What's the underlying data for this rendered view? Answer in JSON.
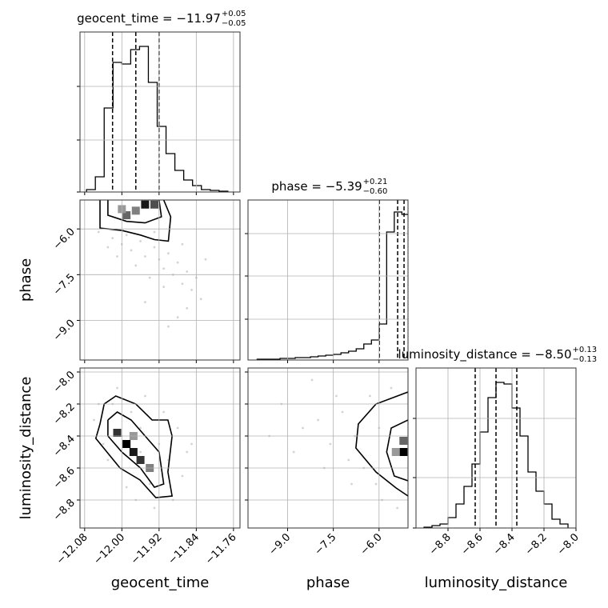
{
  "chart_data": [
    {
      "type": "histogram",
      "title": "geocent_time = −11.97",
      "title_upper": "+0.05",
      "title_lower": "−0.05",
      "color": "#000000",
      "bins": [
        -12.076,
        -12.057,
        -12.038,
        -12.019,
        -12.0,
        -11.981,
        -11.962,
        -11.943,
        -11.924,
        -11.905,
        -11.886,
        -11.867,
        -11.848,
        -11.829,
        -11.81,
        -11.791,
        -11.772
      ],
      "values": [
        3,
        19,
        105,
        162,
        160,
        178,
        182,
        137,
        82,
        48,
        27,
        15,
        8,
        3,
        2,
        1
      ],
      "quantiles": [
        -12.02,
        -11.97,
        -11.92
      ],
      "xlim": [
        -12.09,
        -11.746
      ],
      "xticks": [
        -12.08,
        -12.0,
        -11.92,
        -11.84,
        -11.76
      ],
      "ylim": [
        0,
        200
      ],
      "yticks": [
        0,
        65,
        132
      ],
      "grid": true
    },
    {
      "type": "scatter",
      "ylabel": "phase",
      "color": "#808080",
      "x": [
        -12.05,
        -12.02,
        -12.0,
        -11.98,
        -11.96,
        -11.95,
        -11.93,
        -11.92,
        -11.91,
        -11.9,
        -11.89,
        -11.88,
        -11.87,
        -11.86,
        -11.85,
        -11.84,
        -11.83,
        -11.86,
        -11.88,
        -11.94,
        -11.97,
        -12.01,
        -11.99,
        -11.93,
        -11.87,
        -11.82,
        -11.9,
        -11.95,
        -12.03,
        -11.91
      ],
      "y": [
        -6.1,
        -6.3,
        -6.5,
        -6.7,
        -6.4,
        -6.9,
        -6.6,
        -7.0,
        -7.3,
        -6.8,
        -7.5,
        -7.1,
        -7.8,
        -7.4,
        -8.0,
        -7.6,
        -8.3,
        -8.6,
        -8.9,
        -7.6,
        -7.2,
        -6.9,
        -6.2,
        -6.1,
        -6.5,
        -7.0,
        -9.2,
        -8.4,
        -6.6,
        -7.9
      ],
      "cells": {
        "x": [
          -11.99,
          -11.95,
          -11.93,
          -12.0,
          -11.97
        ],
        "y": [
          -5.55,
          -5.2,
          -5.2,
          -5.35,
          -5.4
        ],
        "density": [
          0.6,
          0.9,
          0.7,
          0.4,
          0.5
        ]
      },
      "contours": [
        {
          "x": [
            -12.047,
            -12.047,
            -12.0,
            -11.96,
            -11.93,
            -11.9,
            -11.895,
            -11.91
          ],
          "y": [
            -5.05,
            -5.97,
            -6.05,
            -6.2,
            -6.35,
            -6.4,
            -5.6,
            -5.05
          ]
        },
        {
          "x": [
            -12.03,
            -12.03,
            -11.99,
            -11.95,
            -11.915,
            -11.92
          ],
          "y": [
            -5.05,
            -5.55,
            -5.75,
            -5.8,
            -5.6,
            -5.05
          ]
        }
      ],
      "xlim": [
        -12.09,
        -11.746
      ],
      "xticks": [
        -12.08,
        -12.0,
        -11.92,
        -11.84,
        -11.76
      ],
      "ylim": [
        -10.3,
        -5.05
      ],
      "yticks": [
        {
          "value": -6.0,
          "label": "−6.0"
        },
        {
          "value": -7.5,
          "label": "−7.5"
        },
        {
          "value": -9.0,
          "label": "−9.0"
        }
      ],
      "grid": true
    },
    {
      "type": "histogram",
      "title": "phase = −5.39",
      "title_upper": "+0.21",
      "title_lower": "−0.60",
      "color": "#000000",
      "bins": [
        -10.0,
        -9.75,
        -9.5,
        -9.25,
        -9.0,
        -8.75,
        -8.5,
        -8.25,
        -8.0,
        -7.75,
        -7.5,
        -7.25,
        -7.0,
        -6.75,
        -6.5,
        -6.25,
        -6.0,
        -5.75,
        -5.5,
        -5.25,
        -5.0
      ],
      "values": [
        1,
        1,
        1,
        2,
        2,
        3,
        3,
        4,
        5,
        6,
        7,
        9,
        11,
        14,
        20,
        25,
        45,
        160,
        185,
        182
      ],
      "quantiles": [
        -5.99,
        -5.39,
        -5.18
      ],
      "xlim": [
        -10.3,
        -5.05
      ],
      "xticks": [
        -9.0,
        -7.5,
        -6.0
      ],
      "ylim": [
        0,
        200
      ],
      "yticks": [
        51,
        105,
        158
      ],
      "grid": true
    },
    {
      "type": "scatter",
      "xlabel": "geocent_time",
      "ylabel": "luminosity_distance",
      "color": "#808080",
      "x": [
        -12.06,
        -12.04,
        -12.02,
        -12.0,
        -11.98,
        -11.96,
        -11.94,
        -11.92,
        -11.9,
        -11.88,
        -11.87,
        -11.86,
        -11.95,
        -11.99,
        -12.03,
        -11.97,
        -11.91,
        -11.89,
        -12.05,
        -11.93,
        -12.01,
        -11.85,
        -11.96,
        -12.0
      ],
      "y": [
        -8.3,
        -8.45,
        -8.2,
        -8.6,
        -8.25,
        -8.35,
        -8.7,
        -8.45,
        -8.55,
        -8.35,
        -8.65,
        -8.5,
        -8.15,
        -8.72,
        -8.55,
        -8.8,
        -8.25,
        -8.8,
        -8.2,
        -8.85,
        -8.1,
        -8.45,
        -8.5,
        -8.4
      ],
      "cells": {
        "x": [
          -12.01,
          -11.99,
          -11.975,
          -11.96,
          -11.94,
          -11.975
        ],
        "y": [
          -8.38,
          -8.45,
          -8.5,
          -8.55,
          -8.6,
          -8.4
        ],
        "density": [
          0.8,
          1,
          0.9,
          0.8,
          0.5,
          0.4
        ]
      },
      "contours": [
        {
          "x": [
            -12.047,
            -12.038,
            -12.013,
            -11.97,
            -11.935,
            -11.901,
            -11.892,
            -11.901,
            -11.892,
            -11.927,
            -11.961,
            -12.004,
            -12.056,
            -12.047
          ],
          "y": [
            -8.325,
            -8.2,
            -8.15,
            -8.2,
            -8.3,
            -8.3,
            -8.4,
            -8.625,
            -8.775,
            -8.785,
            -8.675,
            -8.6,
            -8.415,
            -8.325
          ]
        },
        {
          "x": [
            -12.03,
            -12.01,
            -11.98,
            -11.95,
            -11.92,
            -11.91,
            -11.93,
            -11.96,
            -12.0,
            -12.03,
            -12.03
          ],
          "y": [
            -8.3,
            -8.25,
            -8.3,
            -8.4,
            -8.5,
            -8.7,
            -8.72,
            -8.6,
            -8.5,
            -8.4,
            -8.3
          ]
        }
      ],
      "xlim": [
        -12.09,
        -11.746
      ],
      "xticks": [
        {
          "value": -12.08,
          "label": "−12.08"
        },
        {
          "value": -12.0,
          "label": "−12.00"
        },
        {
          "value": -11.92,
          "label": "−11.92"
        },
        {
          "value": -11.84,
          "label": "−11.84"
        },
        {
          "value": -11.76,
          "label": "−11.76"
        }
      ],
      "ylim": [
        -8.975,
        -7.975
      ],
      "yticks": [
        {
          "value": -8.0,
          "label": "−8.0"
        },
        {
          "value": -8.2,
          "label": "−8.2"
        },
        {
          "value": -8.4,
          "label": "−8.4"
        },
        {
          "value": -8.6,
          "label": "−8.6"
        },
        {
          "value": -8.8,
          "label": "−8.8"
        }
      ],
      "grid": true
    },
    {
      "type": "scatter",
      "xlabel": "phase",
      "color": "#808080",
      "x": [
        -9.2,
        -8.5,
        -8.0,
        -7.6,
        -7.2,
        -7.0,
        -6.8,
        -6.5,
        -6.3,
        -6.1,
        -5.9,
        -5.6,
        -7.8,
        -8.8,
        -6.9,
        -7.4,
        -9.6,
        -6.0,
        -5.4,
        -8.2
      ],
      "y": [
        -8.2,
        -8.35,
        -8.3,
        -8.45,
        -8.25,
        -8.55,
        -8.4,
        -8.6,
        -8.15,
        -8.7,
        -8.8,
        -8.1,
        -8.6,
        -8.5,
        -8.7,
        -8.15,
        -8.4,
        -8.35,
        -8.85,
        -8.05
      ],
      "cells": {
        "x": [
          -5.2,
          -5.2,
          -5.45
        ],
        "y": [
          -8.5,
          -8.43,
          -8.5
        ],
        "density": [
          1,
          0.6,
          0.4
        ]
      },
      "contours": [
        {
          "x": [
            -5.05,
            -6.1,
            -6.68,
            -6.76,
            -6.1,
            -5.44,
            -5.05
          ],
          "y": [
            -8.125,
            -8.2,
            -8.325,
            -8.475,
            -8.625,
            -8.725,
            -8.775
          ]
        },
        {
          "x": [
            -5.05,
            -5.6,
            -5.75,
            -5.5,
            -5.05
          ],
          "y": [
            -8.3,
            -8.35,
            -8.5,
            -8.65,
            -8.68
          ]
        }
      ],
      "xlim": [
        -10.3,
        -5.05
      ],
      "xticks": [
        {
          "value": -9.0,
          "label": "−9.0"
        },
        {
          "value": -7.5,
          "label": "−7.5"
        },
        {
          "value": -6.0,
          "label": "−6.0"
        }
      ],
      "ylim": [
        -8.975,
        -7.975
      ],
      "yticks": [
        -8.0,
        -8.2,
        -8.4,
        -8.6,
        -8.8
      ],
      "grid": true
    },
    {
      "type": "histogram",
      "title": "luminosity_distance = −8.50",
      "title_upper": "+0.13",
      "title_lower": "−0.13",
      "xlabel": "luminosity_distance",
      "color": "#000000",
      "bins": [
        -8.95,
        -8.9,
        -8.85,
        -8.8,
        -8.75,
        -8.7,
        -8.65,
        -8.6,
        -8.55,
        -8.5,
        -8.45,
        -8.4,
        -8.35,
        -8.3,
        -8.25,
        -8.2,
        -8.15,
        -8.1,
        -8.05
      ],
      "values": [
        1,
        3,
        5,
        13,
        30,
        52,
        80,
        120,
        163,
        182,
        180,
        150,
        115,
        70,
        46,
        30,
        11,
        5
      ],
      "quantiles": [
        -8.63,
        -8.5,
        -8.37
      ],
      "xlim": [
        -9.0,
        -8.0
      ],
      "xticks": [
        {
          "value": -8.8,
          "label": "−8.8"
        },
        {
          "value": -8.6,
          "label": "−8.6"
        },
        {
          "value": -8.4,
          "label": "−8.4"
        },
        {
          "value": -8.2,
          "label": "−8.2"
        },
        {
          "value": -8.0,
          "label": "−8.0"
        }
      ],
      "ylim": [
        0,
        200
      ],
      "yticks": [
        0,
        63,
        137
      ],
      "grid": true
    }
  ]
}
